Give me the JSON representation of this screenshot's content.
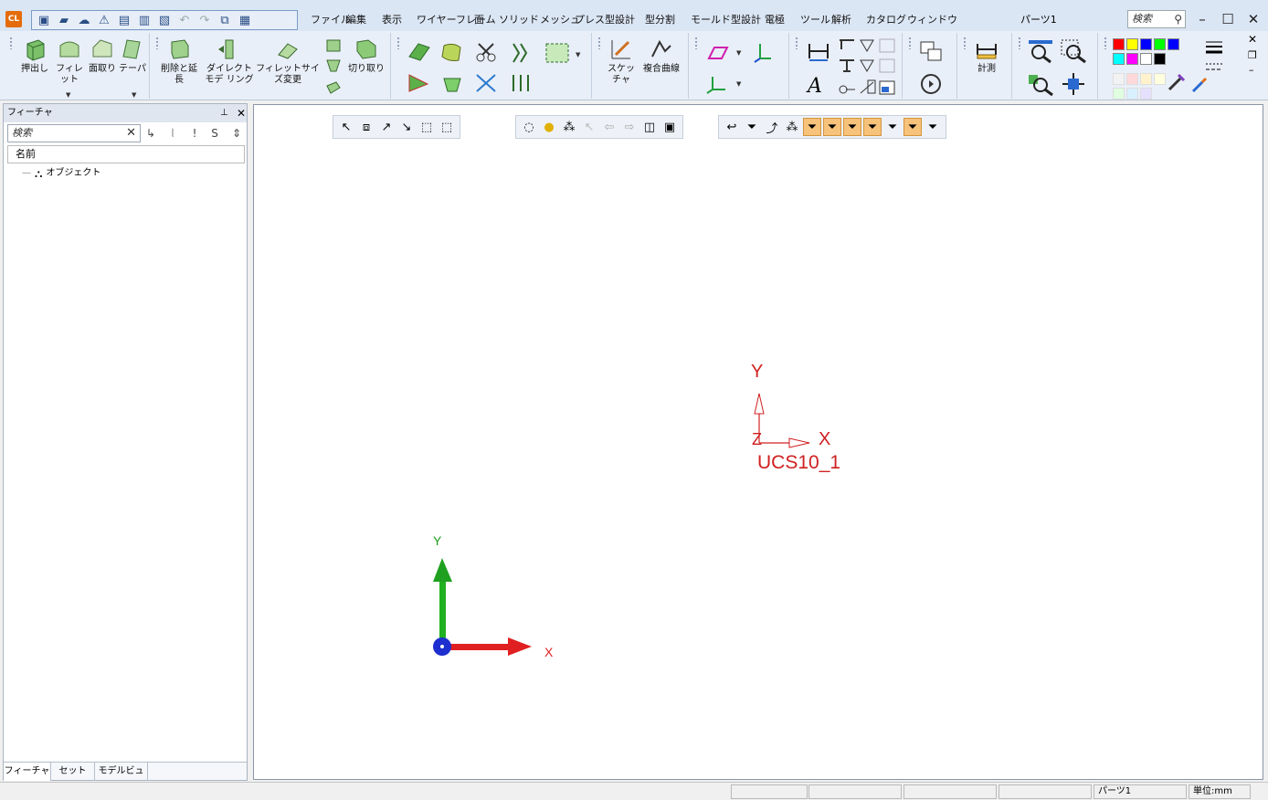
{
  "app": {
    "logo_text": "CL",
    "document_name": "パーツ1"
  },
  "menu": [
    {
      "id": "file",
      "label": "ファイル"
    },
    {
      "id": "edit",
      "label": "編集"
    },
    {
      "id": "view",
      "label": "表示"
    },
    {
      "id": "wireframe",
      "label": "ワイヤーフレーム"
    },
    {
      "id": "face",
      "label": "面"
    },
    {
      "id": "solid",
      "label": "ソリッド"
    },
    {
      "id": "mesh",
      "label": "メッシュ"
    },
    {
      "id": "press",
      "label": "プレス型設計"
    },
    {
      "id": "parting",
      "label": "型分割"
    },
    {
      "id": "mold",
      "label": "モールド型設計"
    },
    {
      "id": "electrode",
      "label": "電極"
    },
    {
      "id": "tools",
      "label": "ツール"
    },
    {
      "id": "analysis",
      "label": "解析"
    },
    {
      "id": "catalog",
      "label": "カタログ"
    },
    {
      "id": "window",
      "label": "ウィンドウ"
    }
  ],
  "search": {
    "placeholder": "検索"
  },
  "ribbon": {
    "extrude": "押出し",
    "fillet": "フィレット",
    "chamfer": "面取り",
    "taper": "テーパ",
    "delete_extend": "削除と延長",
    "direct_modeling": "ダイレクトモデ リング",
    "fillet_resize": "フィレットサイズ変更",
    "trim": "切り取り",
    "sketcher": "スケッチャ",
    "composite_curve": "複合曲線",
    "measure": "計測"
  },
  "colors": {
    "palette": [
      "#ff0000",
      "#ffff00",
      "#0000ff",
      "#00ff00",
      "#0000ff",
      "#00ffff",
      "#ff00ff",
      "#ffffff",
      "#000000"
    ],
    "pastel": [
      "#f2f2f2",
      "#ffd9d9",
      "#fff2cc",
      "#ffffe0",
      "#e0ffe0",
      "#d9f0ff",
      "#e6e0ff"
    ],
    "accent_x": "#e02020",
    "accent_y": "#20a020",
    "ucs": "#d02020"
  },
  "panel": {
    "title": "フィーチャ",
    "search_placeholder": "検索",
    "column_name": "名前",
    "tree_root": "オブジェクト",
    "tabs": [
      "フィーチャ",
      "セット",
      "モデルビュー"
    ]
  },
  "viewport": {
    "ucs_label": "UCS10_1",
    "ucs_x": "X",
    "ucs_y": "Y",
    "ucs_z": "Z",
    "triad_x": "X",
    "triad_y": "Y"
  },
  "status": {
    "cells": [
      "",
      "",
      "",
      "",
      "パーツ1",
      "単位:mm"
    ]
  }
}
